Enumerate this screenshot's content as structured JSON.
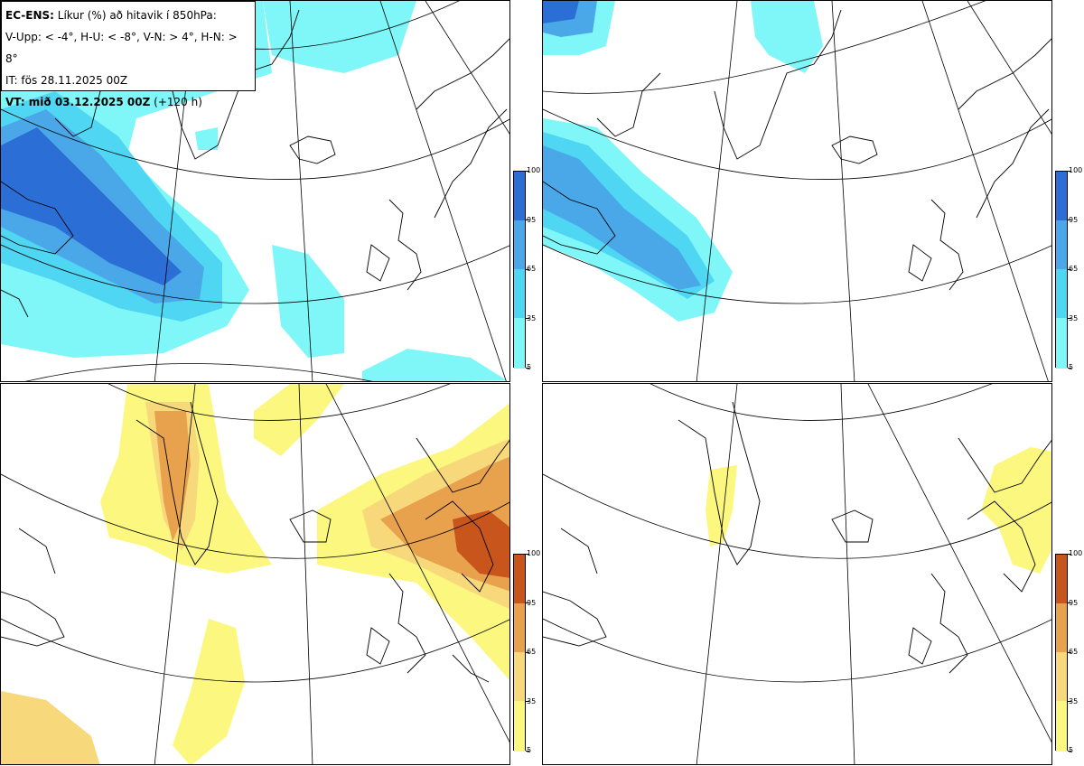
{
  "header": {
    "model": "EC-ENS:",
    "title_rest": "Líkur (%) að hitavik í 850hPa:",
    "legend_line": "V-Upp: < -4°, H-U: < -8°, V-N: > 4°, H-N: > 8°",
    "init_time": "IT: fös 28.11.2025 00Z",
    "valid_label": "VT: mið 03.12.2025 00Z",
    "lead_time": "(+120 h)"
  },
  "colorbar_ticks": [
    "5",
    "35",
    "65",
    "95",
    "100"
  ],
  "colors": {
    "cold": [
      "#7ff7f9",
      "#4fd6f2",
      "#4aa8e8",
      "#2b6fd6"
    ],
    "warm": [
      "#fbf77f",
      "#f7d87a",
      "#e8a24e",
      "#c8561c"
    ],
    "coast": "#000000",
    "grid": "#000000"
  },
  "panels": [
    {
      "id": "top-left",
      "variable": "anomaly < -4°"
    },
    {
      "id": "top-right",
      "variable": "anomaly < -8°"
    },
    {
      "id": "bottom-left",
      "variable": "anomaly > 4°"
    },
    {
      "id": "bottom-right",
      "variable": "anomaly > 8°"
    }
  ]
}
